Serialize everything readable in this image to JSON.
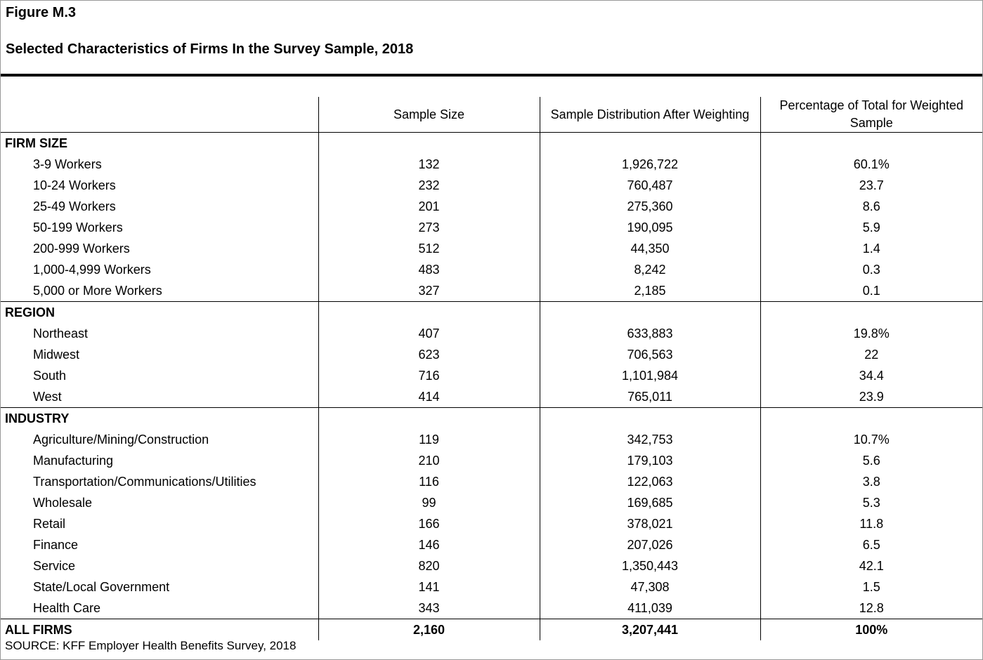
{
  "header": {
    "figure_label": "Figure M.3",
    "title": "Selected Characteristics of Firms In the Survey Sample, 2018"
  },
  "table": {
    "columns": [
      "Sample Size",
      "Sample Distribution After Weighting",
      "Percentage of Total for Weighted Sample"
    ],
    "sections": [
      {
        "label": "FIRM SIZE",
        "rows": [
          [
            "3-9 Workers",
            "132",
            "1,926,722",
            "60.1%"
          ],
          [
            "10-24 Workers",
            "232",
            "760,487",
            "23.7"
          ],
          [
            "25-49 Workers",
            "201",
            "275,360",
            "8.6"
          ],
          [
            "50-199 Workers",
            "273",
            "190,095",
            "5.9"
          ],
          [
            "200-999 Workers",
            "512",
            "44,350",
            "1.4"
          ],
          [
            "1,000-4,999 Workers",
            "483",
            "8,242",
            "0.3"
          ],
          [
            "5,000 or More Workers",
            "327",
            "2,185",
            "0.1"
          ]
        ]
      },
      {
        "label": "REGION",
        "rows": [
          [
            "Northeast",
            "407",
            "633,883",
            "19.8%"
          ],
          [
            "Midwest",
            "623",
            "706,563",
            "22"
          ],
          [
            "South",
            "716",
            "1,101,984",
            "34.4"
          ],
          [
            "West",
            "414",
            "765,011",
            "23.9"
          ]
        ]
      },
      {
        "label": "INDUSTRY",
        "rows": [
          [
            "Agriculture/Mining/Construction",
            "119",
            "342,753",
            "10.7%"
          ],
          [
            "Manufacturing",
            "210",
            "179,103",
            "5.6"
          ],
          [
            "Transportation/Communications/Utilities",
            "116",
            "122,063",
            "3.8"
          ],
          [
            "Wholesale",
            "99",
            "169,685",
            "5.3"
          ],
          [
            "Retail",
            "166",
            "378,021",
            "11.8"
          ],
          [
            "Finance",
            "146",
            "207,026",
            "6.5"
          ],
          [
            "Service",
            "820",
            "1,350,443",
            "42.1"
          ],
          [
            "State/Local Government",
            "141",
            "47,308",
            "1.5"
          ],
          [
            "Health Care",
            "343",
            "411,039",
            "12.8"
          ]
        ]
      }
    ],
    "total": [
      "ALL FIRMS",
      "2,160",
      "3,207,441",
      "100%"
    ]
  },
  "source": "SOURCE: KFF Employer Health Benefits Survey, 2018"
}
